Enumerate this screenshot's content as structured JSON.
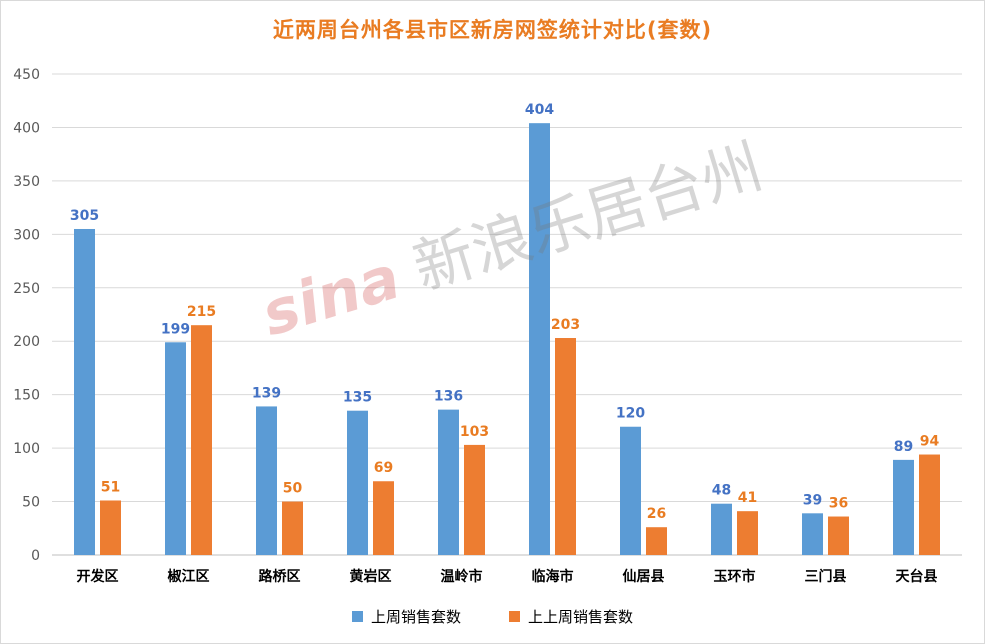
{
  "chart_data": {
    "type": "bar",
    "title": "近两周台州各县市区新房网签统计对比(套数)",
    "categories": [
      "开发区",
      "椒江区",
      "路桥区",
      "黄岩区",
      "温岭市",
      "临海市",
      "仙居县",
      "玉环市",
      "三门县",
      "天台县"
    ],
    "series": [
      {
        "name": "上周销售套数",
        "color": "#5b9bd5",
        "label_color": "#4472c4",
        "values": [
          305,
          199,
          139,
          135,
          136,
          404,
          120,
          48,
          39,
          89
        ]
      },
      {
        "name": "上上周销售套数",
        "color": "#ed7d31",
        "label_color": "#e97c22",
        "values": [
          51,
          215,
          50,
          69,
          103,
          203,
          26,
          41,
          36,
          94
        ]
      }
    ],
    "ylim": [
      0,
      450
    ],
    "yticks": [
      0,
      50,
      100,
      150,
      200,
      250,
      300,
      350,
      400,
      450
    ],
    "grid": true,
    "legend_position": "bottom"
  },
  "watermark": {
    "logo": "sina",
    "text": "新浪乐居台州"
  }
}
